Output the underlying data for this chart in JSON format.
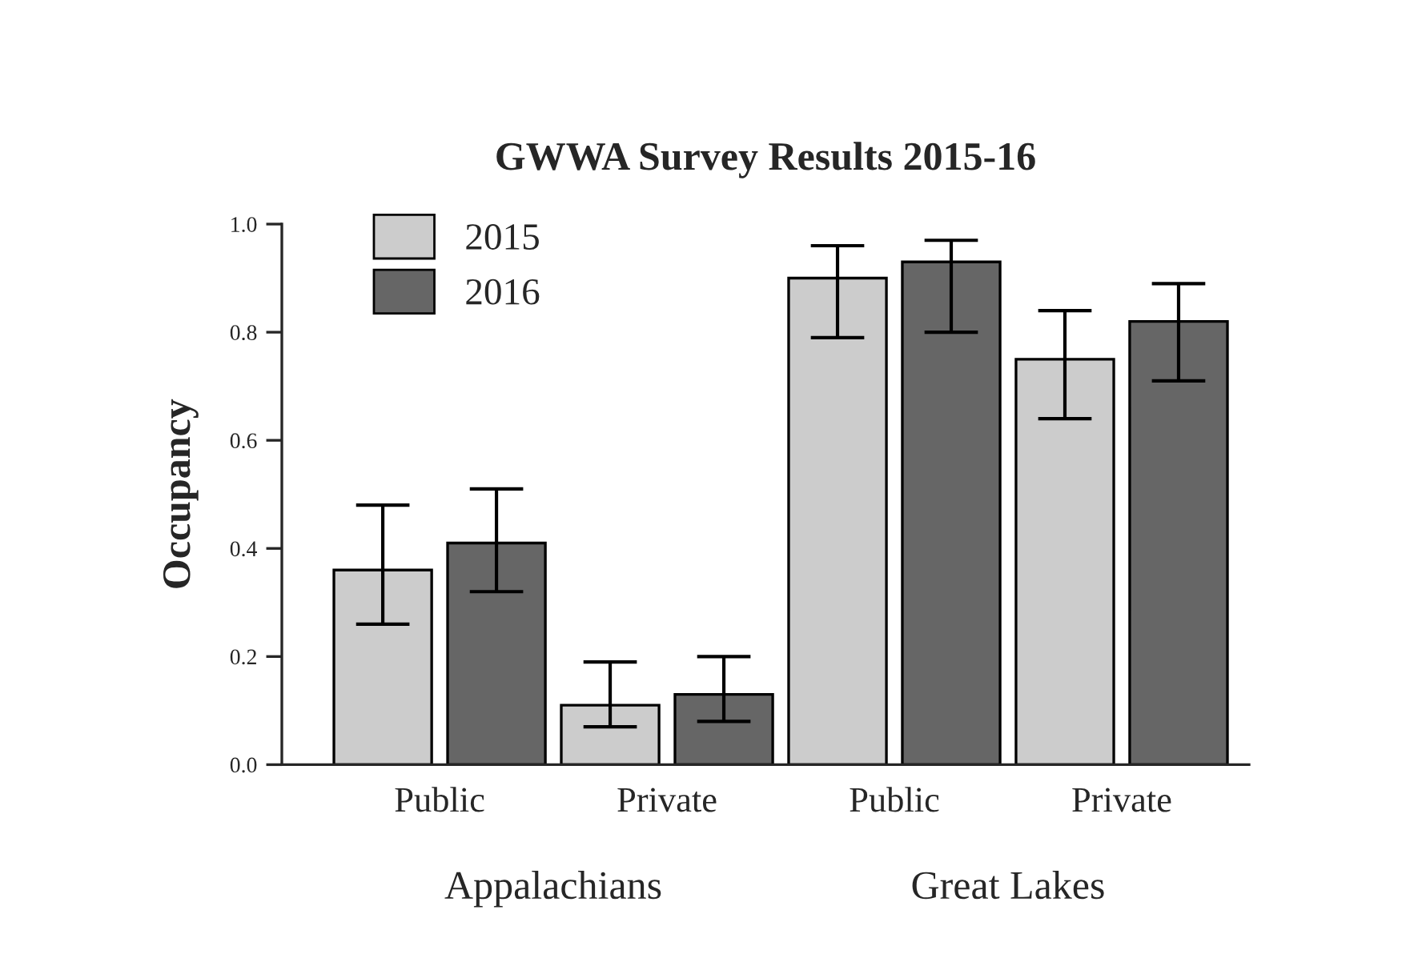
{
  "chart_data": {
    "type": "bar",
    "title": "GWWA Survey Results 2015-16",
    "ylabel": "Occupancy",
    "categories": [
      "Public",
      "Private",
      "Public",
      "Private"
    ],
    "series": [
      {
        "name": "2015",
        "color": "#cccccc",
        "values": [
          0.36,
          0.11,
          0.9,
          0.75
        ],
        "errors": [
          [
            0.26,
            0.48
          ],
          [
            0.07,
            0.19
          ],
          [
            0.79,
            0.96
          ],
          [
            0.64,
            0.84
          ]
        ]
      },
      {
        "name": "2016",
        "color": "#666666",
        "values": [
          0.41,
          0.13,
          0.93,
          0.82
        ],
        "errors": [
          [
            0.32,
            0.51
          ],
          [
            0.08,
            0.2
          ],
          [
            0.8,
            0.97
          ],
          [
            0.71,
            0.89
          ]
        ]
      }
    ],
    "annotations": [
      "Appalachians",
      "Great Lakes"
    ],
    "ylim": [
      0,
      1.0
    ],
    "yticks": [
      {
        "value": 0,
        "label": "0.0"
      },
      0.2,
      0.4,
      0.6,
      0.8,
      {
        "value": 1.0,
        "label": "1.0"
      }
    ],
    "legend": "top left",
    "grid": false
  }
}
